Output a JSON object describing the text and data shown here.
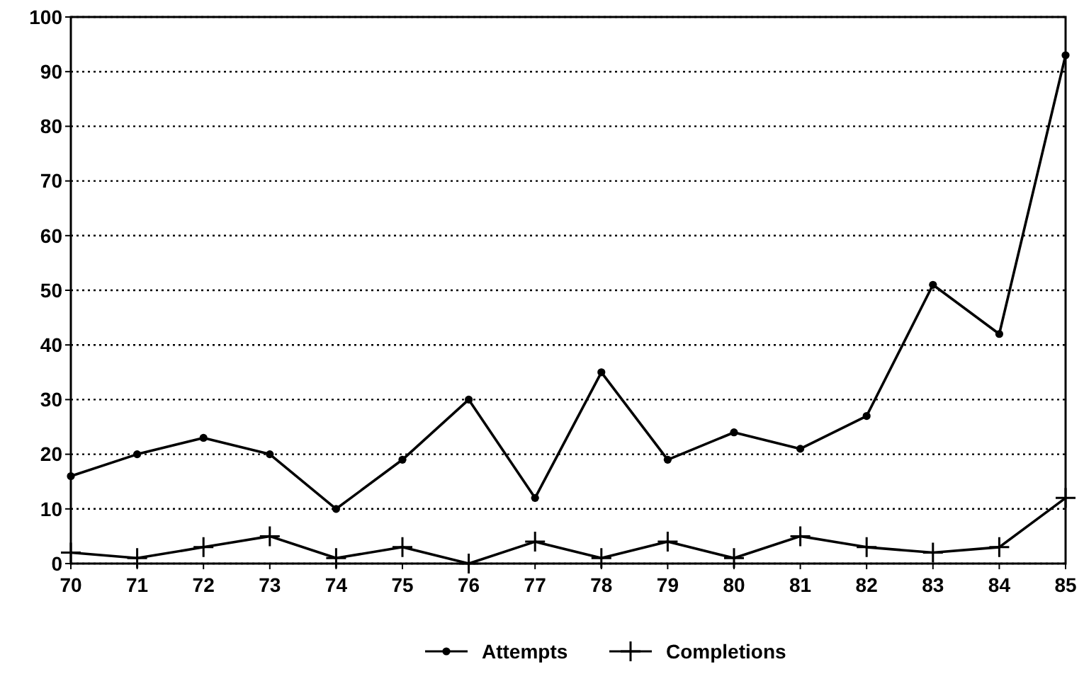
{
  "chart_data": {
    "type": "line",
    "x": [
      70,
      71,
      72,
      73,
      74,
      75,
      76,
      77,
      78,
      79,
      80,
      81,
      82,
      83,
      84,
      85
    ],
    "series": [
      {
        "name": "Attempts",
        "color": "#000000",
        "marker": "circle",
        "values": [
          16,
          20,
          23,
          20,
          10,
          19,
          30,
          12,
          35,
          19,
          24,
          21,
          27,
          51,
          42,
          93
        ]
      },
      {
        "name": "Completions",
        "color": "#000000",
        "marker": "cross",
        "values": [
          2,
          1,
          3,
          5,
          1,
          3,
          0,
          4,
          1,
          4,
          1,
          5,
          3,
          2,
          3,
          12
        ]
      }
    ],
    "xlim": [
      70,
      85
    ],
    "xticks": [
      70,
      71,
      72,
      73,
      74,
      75,
      76,
      77,
      78,
      79,
      80,
      81,
      82,
      83,
      84,
      85
    ],
    "ylim": [
      0,
      100
    ],
    "yticks": [
      0,
      10,
      20,
      30,
      40,
      50,
      60,
      70,
      80,
      90,
      100
    ],
    "grid": "y",
    "legend": "bottom",
    "line_style": "solid"
  }
}
